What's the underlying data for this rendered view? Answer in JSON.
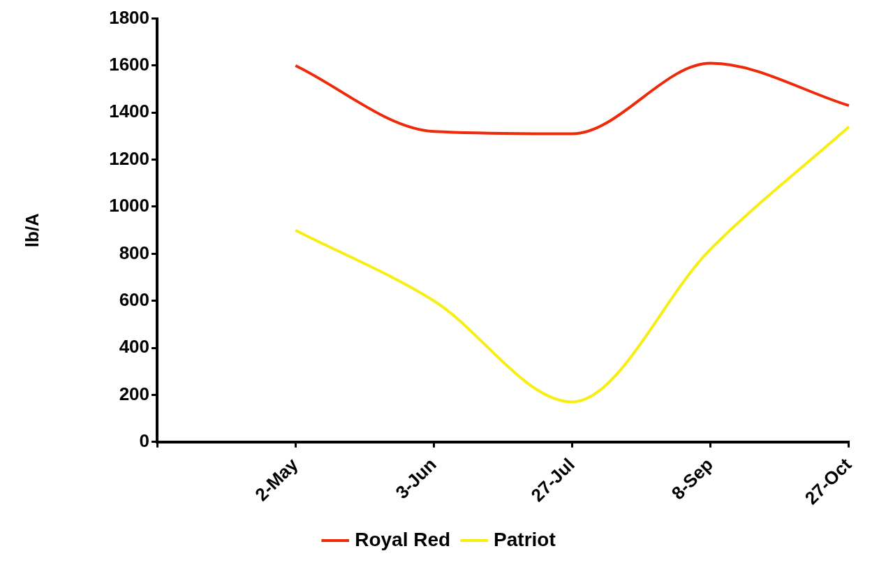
{
  "chart_data": {
    "type": "line",
    "ylabel": "lb/A",
    "categories": [
      null,
      "2-May",
      "3-Jun",
      "27-Jul",
      "8-Sep",
      "27-Oct"
    ],
    "series": [
      {
        "name": "Royal Red",
        "color": "#ee2a0b",
        "values": [
          null,
          1600,
          1320,
          1310,
          1610,
          1430
        ]
      },
      {
        "name": "Patriot",
        "color": "#f7ef14",
        "values": [
          null,
          900,
          600,
          170,
          820,
          1340
        ]
      }
    ],
    "ylim": [
      0,
      1800
    ],
    "yticks": [
      0,
      200,
      400,
      600,
      800,
      1000,
      1200,
      1400,
      1600,
      1800
    ],
    "grid": false,
    "legend": "bottom",
    "marker": "none",
    "line_style": "solid"
  }
}
